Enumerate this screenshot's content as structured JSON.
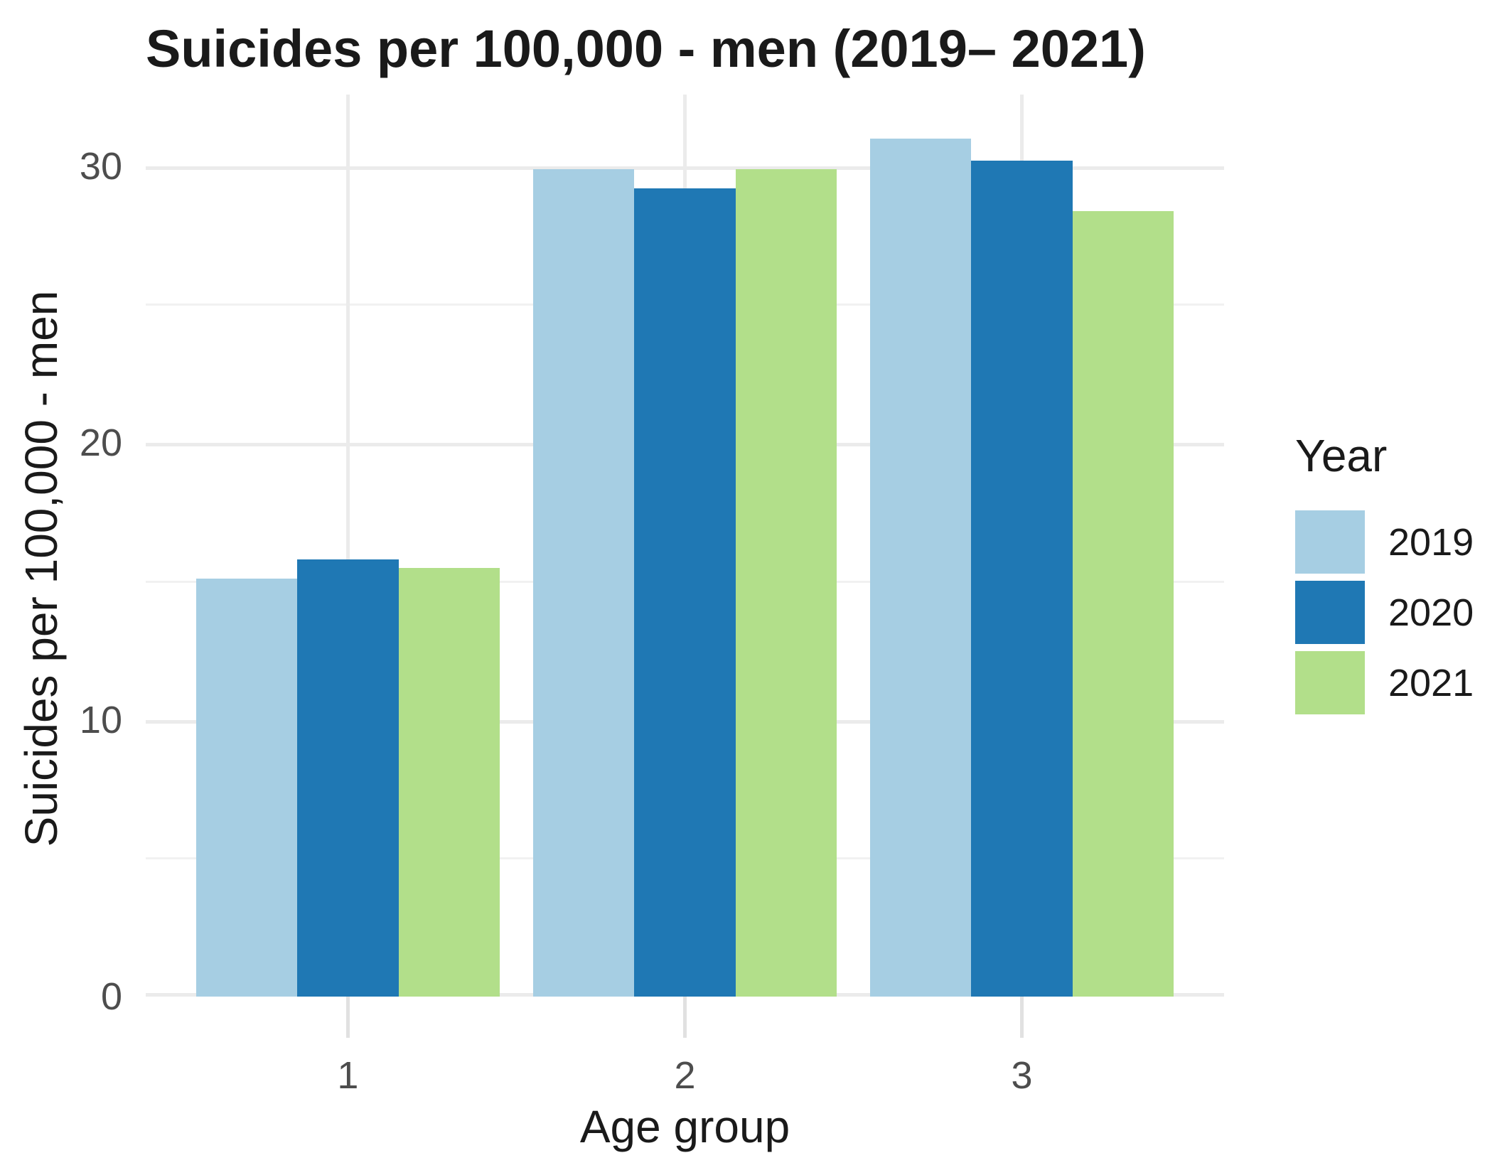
{
  "chart_data": {
    "type": "bar",
    "title": "Suicides per 100,000 - men (2019– 2021)",
    "xlabel": "Age group",
    "ylabel": "Suicides per 100,000 - men",
    "categories": [
      "1",
      "2",
      "3"
    ],
    "series": [
      {
        "name": "2019",
        "color": "#A6CEE3",
        "values": [
          15.1,
          29.9,
          31.0
        ]
      },
      {
        "name": "2020",
        "color": "#1F78B4",
        "values": [
          15.8,
          29.2,
          30.2
        ]
      },
      {
        "name": "2021",
        "color": "#B2DF8A",
        "values": [
          15.5,
          29.9,
          28.4
        ]
      }
    ],
    "ylim": [
      0,
      32.6
    ],
    "yticks": [
      0,
      10,
      20,
      30
    ],
    "yticks_minor": [
      5,
      15,
      25
    ],
    "grid": true,
    "legend_title": "Year",
    "legend_position": "right",
    "colors": {
      "grid_major": "#EBEBEB",
      "grid_minor": "#F1F1F1",
      "tick_mark": "#E1E1E1",
      "tick_label": "#4D4D4D",
      "text": "#1A1A1A",
      "background": "#FFFFFF"
    }
  }
}
